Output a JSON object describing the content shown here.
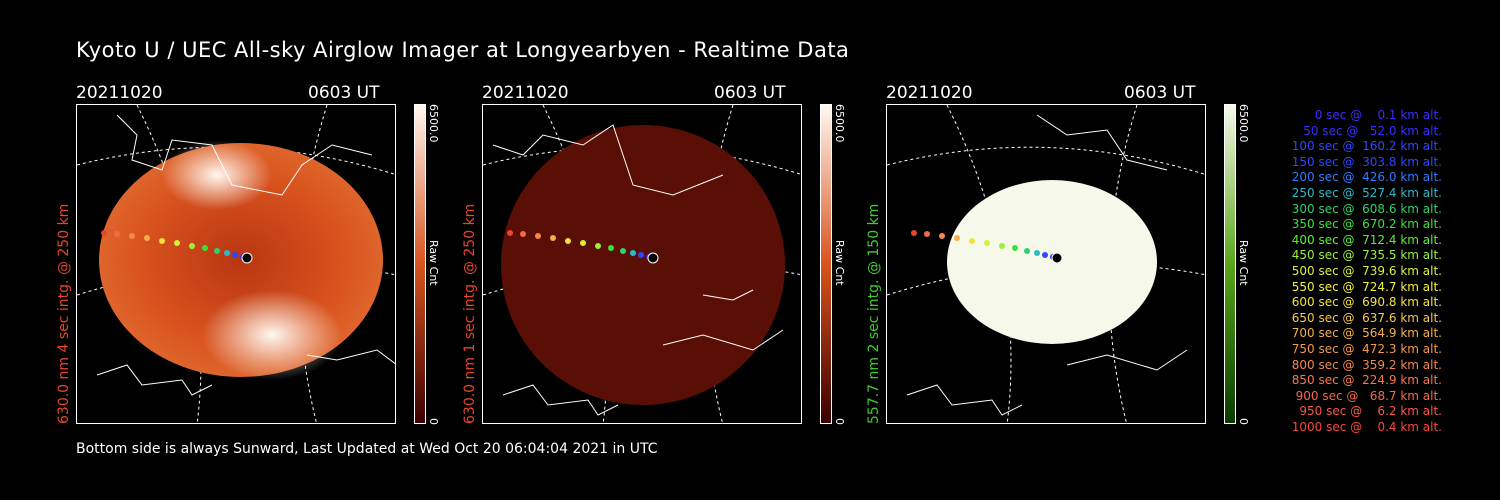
{
  "header": {
    "title": "Kyoto U / UEC All-sky Airglow Imager at Longyearbyen - Realtime Data"
  },
  "footer": {
    "text": "Bottom side is always Sunward, Last Updated at Wed Oct 20 06:04:04 2021 in UTC"
  },
  "panels": [
    {
      "date": "20211020",
      "time": "0603 UT",
      "ylabel": "630.0 nm  4 sec intg. @ 250 km",
      "ylabel_color": "#e8452a",
      "cbar_max": "6500.0",
      "cbar_min": "0",
      "cbar_label": "Raw Cnt",
      "cbar_colors": [
        "#3a0000",
        "#d9531e",
        "#fff8f0"
      ]
    },
    {
      "date": "20211020",
      "time": "0603 UT",
      "ylabel": "630.0 nm  1 sec intg. @ 250 km",
      "ylabel_color": "#e8452a",
      "cbar_max": "6500.0",
      "cbar_min": "0",
      "cbar_label": "Raw Cnt",
      "cbar_colors": [
        "#3a0000",
        "#d9531e",
        "#fff8f0"
      ]
    },
    {
      "date": "20211020",
      "time": "0603 UT",
      "ylabel": "557.7 nm  2 sec intg. @ 150 km",
      "ylabel_color": "#3ecf2e",
      "cbar_max": "6500.0",
      "cbar_min": "0",
      "cbar_label": "Raw Cnt",
      "cbar_colors": [
        "#0a3a00",
        "#5aa51a",
        "#f6f9ea"
      ]
    }
  ],
  "legend": [
    {
      "text": "0 sec @    0.1 km alt.",
      "color": "#3a2cff"
    },
    {
      "text": "50 sec @   52.0 km alt.",
      "color": "#3a2cff"
    },
    {
      "text": "100 sec @  160.2 km alt.",
      "color": "#2b48ff"
    },
    {
      "text": "150 sec @  303.8 km alt.",
      "color": "#2b48ff"
    },
    {
      "text": "200 sec @  426.0 km alt.",
      "color": "#2e7cff"
    },
    {
      "text": "250 sec @  527.4 km alt.",
      "color": "#2fb8c8"
    },
    {
      "text": "300 sec @  608.6 km alt.",
      "color": "#2fd070"
    },
    {
      "text": "350 sec @  670.2 km alt.",
      "color": "#3ce03a"
    },
    {
      "text": "400 sec @  712.4 km alt.",
      "color": "#5af03a"
    },
    {
      "text": "450 sec @  735.5 km alt.",
      "color": "#9cf03a"
    },
    {
      "text": "500 sec @  739.6 km alt.",
      "color": "#d8f03a"
    },
    {
      "text": "550 sec @  724.7 km alt.",
      "color": "#f4f03a"
    },
    {
      "text": "600 sec @  690.8 km alt.",
      "color": "#f6e040"
    },
    {
      "text": "650 sec @  637.6 km alt.",
      "color": "#f6c84a"
    },
    {
      "text": "700 sec @  564.9 km alt.",
      "color": "#f6b04a"
    },
    {
      "text": "750 sec @  472.3 km alt.",
      "color": "#f69a4a"
    },
    {
      "text": "800 sec @  359.2 km alt.",
      "color": "#f6884a"
    },
    {
      "text": "850 sec @  224.9 km alt.",
      "color": "#f6784a"
    },
    {
      "text": "900 sec @   68.7 km alt.",
      "color": "#f6684a"
    },
    {
      "text": "950 sec @    6.2 km alt.",
      "color": "#f6584a"
    },
    {
      "text": "1000 sec @    0.4 km alt.",
      "color": "#f64a3a"
    }
  ]
}
